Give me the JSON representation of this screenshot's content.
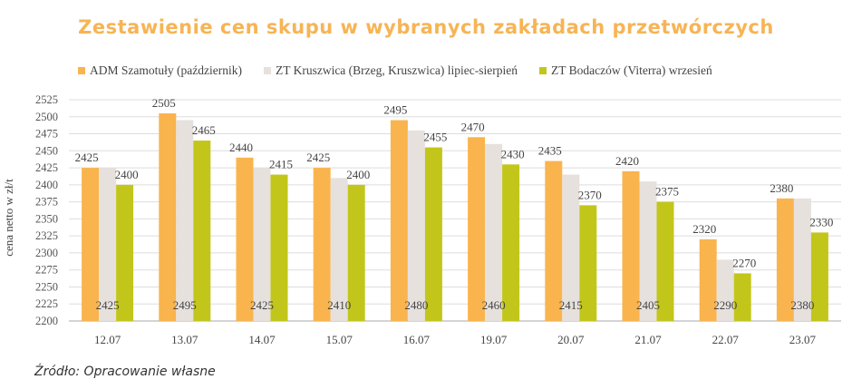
{
  "chart_data": {
    "type": "bar",
    "title": "Zestawienie cen skupu w wybranych zakładach przetwórczych",
    "ylabel": "cena netto w zł/t",
    "xlabel": "",
    "ylim": [
      2200,
      2525
    ],
    "yticks": [
      2200,
      2225,
      2250,
      2275,
      2300,
      2325,
      2350,
      2375,
      2400,
      2425,
      2450,
      2475,
      2500,
      2525
    ],
    "categories": [
      "12.07",
      "13.07",
      "14.07",
      "15.07",
      "16.07",
      "19.07",
      "20.07",
      "21.07",
      "22.07",
      "23.07"
    ],
    "series": [
      {
        "name": "ADM Szamotuły (październik)",
        "color": "#f9b44e",
        "values": [
          2425,
          2505,
          2440,
          2425,
          2495,
          2470,
          2435,
          2420,
          2320,
          2380
        ]
      },
      {
        "name": "ZT Kruszwica (Brzeg, Kruszwica) lipiec-sierpień",
        "color": "#e6e1dd",
        "values": [
          2425,
          2495,
          2425,
          2410,
          2480,
          2460,
          2415,
          2405,
          2290,
          2380
        ]
      },
      {
        "name": "ZT Bodaczów (Viterra) wrzesień",
        "color": "#c3c61a",
        "values": [
          2400,
          2465,
          2415,
          2400,
          2455,
          2430,
          2370,
          2375,
          2270,
          2330
        ]
      }
    ],
    "grid": true,
    "legend_position": "top"
  },
  "source": "Źródło: Opracowanie własne"
}
